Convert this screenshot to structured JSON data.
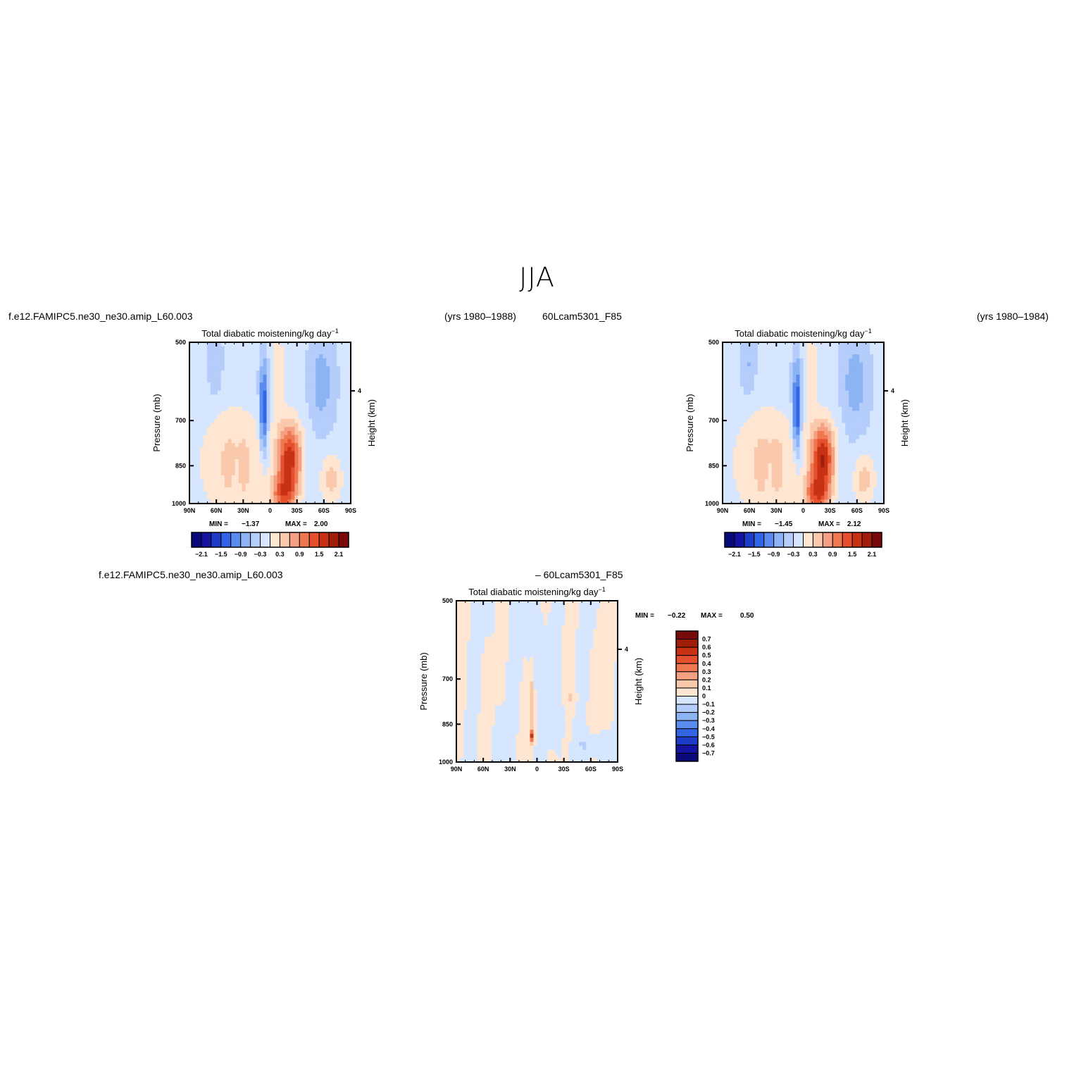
{
  "page": {
    "season_title": "JJA",
    "model_case": "f.e12.FAMIPC5.ne30_ne30.amip_L60.003",
    "model_years": "(yrs 1980–1988)",
    "control_case": "60Lcam5301_F85",
    "control_years": "(yrs 1980–1984)",
    "diff_case_label": "f.e12.FAMIPC5.ne30_ne30.amip_L60.003",
    "diff_minus_label": "– 60Lcam5301_F85"
  },
  "colors": {
    "full_levels": [
      "#0a0a78",
      "#1414a0",
      "#1e3cc8",
      "#3264e6",
      "#5a8cf0",
      "#8cb4f5",
      "#b4cdfa",
      "#d7e6ff",
      "#ffe6d2",
      "#fac8aa",
      "#f5a082",
      "#f07850",
      "#e6502d",
      "#c83214",
      "#a01e0a",
      "#780a0a"
    ],
    "diff_levels": [
      "#0a0a78",
      "#1414a0",
      "#1e3cc8",
      "#3264e6",
      "#5a8cf0",
      "#8cb4f5",
      "#b4cdfa",
      "#d7e6ff",
      "#ffe6d2",
      "#fac8aa",
      "#f5a082",
      "#f07850",
      "#e6502d",
      "#c83214",
      "#a01e0a",
      "#780a0a"
    ]
  },
  "chart_data": [
    {
      "id": "model",
      "type": "heatmap",
      "title": "Total diabatic moistening/kg day",
      "title_superscript": "−1",
      "ylabel": "Pressure (mb)",
      "ylabel_right": "Height (km)",
      "x_ticks": [
        "90N",
        "60N",
        "30N",
        "0",
        "30S",
        "60S",
        "90S"
      ],
      "y_ticks": [
        "500",
        "700",
        "850",
        "1000"
      ],
      "y_right_ticks": [
        "4"
      ],
      "stats": {
        "min_label": "MIN =",
        "min": "−1.37",
        "max_label": "MAX =",
        "max": "2.00"
      },
      "colorbar_labels": [
        "−2.1",
        "−1.5",
        "−0.9",
        "−0.3",
        "0.3",
        "0.9",
        "1.5",
        "2.1"
      ]
    },
    {
      "id": "control",
      "type": "heatmap",
      "title": "Total diabatic moistening/kg day",
      "title_superscript": "−1",
      "ylabel": "Pressure (mb)",
      "ylabel_right": "Height (km)",
      "x_ticks": [
        "90N",
        "60N",
        "30N",
        "0",
        "30S",
        "60S",
        "90S"
      ],
      "y_ticks": [
        "500",
        "700",
        "850",
        "1000"
      ],
      "y_right_ticks": [
        "4"
      ],
      "stats": {
        "min_label": "MIN =",
        "min": "−1.45",
        "max_label": "MAX =",
        "max": "2.12"
      },
      "colorbar_labels": [
        "−2.1",
        "−1.5",
        "−0.9",
        "−0.3",
        "0.3",
        "0.9",
        "1.5",
        "2.1"
      ]
    },
    {
      "id": "difference",
      "type": "heatmap",
      "title": "Total diabatic moistening/kg day",
      "title_superscript": "−1",
      "ylabel": "Pressure (mb)",
      "ylabel_right": "Height (km)",
      "x_ticks": [
        "90N",
        "60N",
        "30N",
        "0",
        "30S",
        "60S",
        "90S"
      ],
      "y_ticks": [
        "500",
        "700",
        "850",
        "1000"
      ],
      "y_right_ticks": [
        "4"
      ],
      "stats": {
        "min_label": "MIN =",
        "min": "−0.22",
        "max_label": "MAX =",
        "max": "0.50"
      },
      "colorbar_labels": [
        "0.7",
        "0.6",
        "0.5",
        "0.4",
        "0.3",
        "0.2",
        "0.1",
        "0",
        "−0.1",
        "−0.2",
        "−0.3",
        "−0.4",
        "−0.5",
        "−0.6",
        "−0.7"
      ]
    }
  ]
}
